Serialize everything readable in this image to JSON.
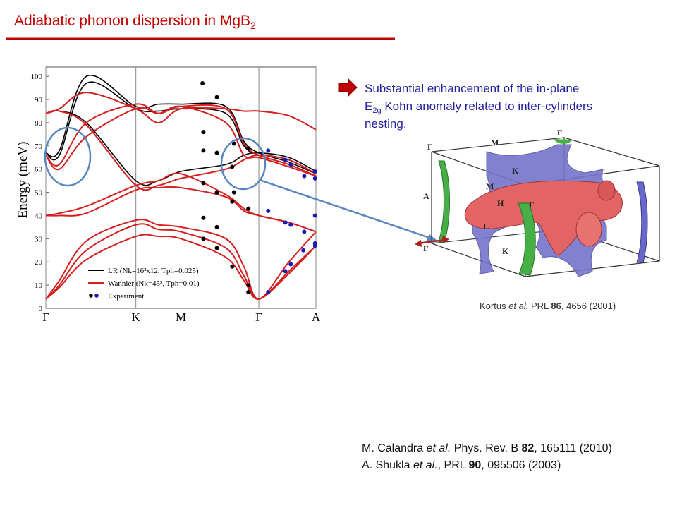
{
  "header": {
    "title": "Adiabatic phonon dispersion in MgB",
    "title_sub": "2"
  },
  "chart_data": {
    "type": "line",
    "ylabel": "Energy (meV)",
    "xlim": [
      0,
      3.0
    ],
    "ylim": [
      0,
      104
    ],
    "xticks": [
      {
        "value": 0,
        "label": "Γ"
      },
      {
        "value": 1.0,
        "label": "K"
      },
      {
        "value": 1.5,
        "label": "M"
      },
      {
        "value": 2.366,
        "label": "Γ"
      },
      {
        "value": 3.0,
        "label": "A"
      }
    ],
    "yticks": [
      0,
      10,
      20,
      30,
      40,
      50,
      60,
      70,
      80,
      90,
      100
    ],
    "series": [
      {
        "name": "LR (Nk=16²x12, Tph=0.025)",
        "color": "#000000",
        "x": [
          0,
          0.15,
          0.45,
          1.0,
          1.25,
          1.5,
          2.0,
          2.2,
          2.366,
          2.7,
          3.0
        ],
        "branches": [
          [
            67,
            68,
            100,
            87,
            88,
            88,
            87,
            72,
            67,
            63,
            58
          ],
          [
            67,
            66,
            97,
            86,
            85,
            86,
            84,
            70,
            66,
            62,
            57
          ],
          [
            84,
            85,
            80,
            55,
            55,
            59,
            62,
            66,
            67,
            65,
            59
          ]
        ]
      },
      {
        "name": "Wannier (Nk=45³, Tph=0.01)",
        "color": "#d42020",
        "x": [
          0,
          0.15,
          0.45,
          1.0,
          1.25,
          1.5,
          2.0,
          2.2,
          2.366,
          2.7,
          3.0
        ],
        "branches": [
          [
            4,
            9,
            21,
            31,
            31,
            30,
            22,
            12,
            4,
            15,
            27
          ],
          [
            4,
            10,
            25,
            36,
            34,
            33,
            26,
            14,
            4,
            16,
            27
          ],
          [
            4,
            12,
            29,
            38,
            36,
            35,
            30,
            18,
            4,
            20,
            33
          ],
          [
            40,
            40,
            41,
            51,
            52,
            52,
            48,
            42,
            40,
            37,
            33
          ],
          [
            40,
            41,
            44,
            53,
            55,
            58,
            49,
            43,
            40,
            37,
            33
          ],
          [
            66,
            60,
            74,
            86,
            84,
            87,
            80,
            66,
            65,
            61,
            57
          ],
          [
            66,
            62,
            80,
            88,
            84,
            87,
            86,
            71,
            66,
            62,
            57
          ],
          [
            84,
            85,
            79,
            53,
            53,
            56,
            60,
            64,
            66,
            64,
            58
          ],
          [
            84,
            86,
            93,
            86,
            80,
            86,
            86,
            85,
            85,
            83,
            77
          ]
        ]
      },
      {
        "name": "Experiment",
        "color": "#000000",
        "type": "scatter",
        "x": [
          1.74,
          1.9,
          1.75,
          1.75,
          1.9,
          2.09,
          2.07,
          2.25,
          1.75,
          1.9,
          2.09,
          2.07,
          2.25,
          1.75,
          1.9,
          1.75,
          1.9,
          2.07,
          2.25,
          2.25
        ],
        "values": [
          97,
          91,
          76,
          68,
          67,
          71,
          61,
          69,
          54,
          50,
          50,
          46,
          43,
          39,
          35,
          30,
          26,
          18,
          10,
          7
        ]
      },
      {
        "color": "#1a1ab0",
        "type": "scatter",
        "x": [
          2.47,
          2.66,
          2.72,
          2.87,
          2.99,
          2.99,
          2.47,
          2.66,
          2.72,
          2.87,
          2.99,
          2.99,
          2.99,
          2.86,
          2.72,
          2.66,
          2.47
        ],
        "values": [
          68,
          64,
          62,
          57,
          59,
          56,
          42,
          37,
          36,
          33,
          40,
          28,
          27,
          25,
          19,
          16,
          7
        ]
      }
    ]
  },
  "note": {
    "line1": "Substantial enhancement of the in-plane",
    "line2a": "E",
    "line2sub": "2g",
    "line2b": " Kohn anomaly related to inter-cylinders",
    "line3": "nesting."
  },
  "fermi_labels": [
    "Γ",
    "M",
    "Γ",
    "K",
    "M",
    "A",
    "H",
    "L",
    "K",
    "Γ",
    "Γ"
  ],
  "caption": [
    "Kortus ",
    "et al.",
    " PRL ",
    "86",
    ", 4656 (2001)"
  ],
  "references": [
    [
      "M. Calandra ",
      "et al.",
      " Phys. Rev. B ",
      "82",
      ", 165111 (2010)"
    ],
    [
      "A. Shukla ",
      "et al.",
      ", PRL ",
      "90",
      ", 095506 (2003)"
    ]
  ]
}
